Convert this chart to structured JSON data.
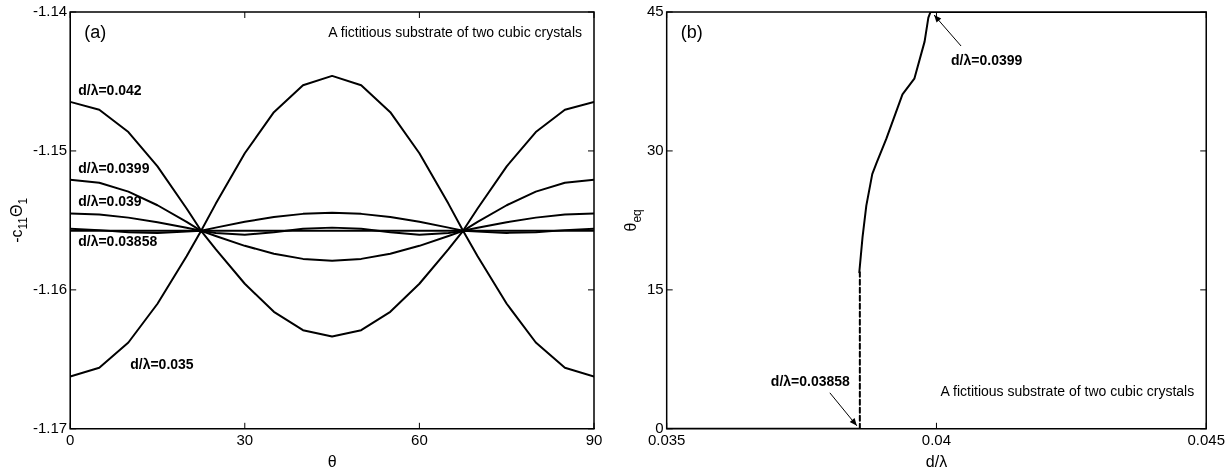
{
  "chart_data": [
    {
      "type": "line",
      "title": "(a)",
      "xlabel": "θ",
      "ylabel": "-c$_{11}$Θ$_{1}$",
      "annotations": [
        "A fictitious substrate of two cubic crystals"
      ],
      "x": [
        0,
        5,
        10,
        15,
        20,
        22.5,
        25,
        30,
        35,
        40,
        45,
        50,
        55,
        60,
        65,
        67.5,
        70,
        75,
        80,
        85,
        90
      ],
      "series": [
        {
          "name": "d/λ=0.042",
          "color": "#000000",
          "values": [
            -1.14647,
            -1.14703,
            -1.14864,
            -1.15111,
            -1.15414,
            -1.15575,
            -1.15381,
            -1.15017,
            -1.14721,
            -1.14527,
            -1.1446,
            -1.14527,
            -1.14721,
            -1.15017,
            -1.15381,
            -1.15575,
            -1.15414,
            -1.15111,
            -1.14864,
            -1.14703,
            -1.14647
          ]
        },
        {
          "name": "d/λ=0.0399",
          "color": "#000000",
          "values": [
            -1.15207,
            -1.15229,
            -1.15293,
            -1.15391,
            -1.15511,
            -1.15575,
            -1.15612,
            -1.15683,
            -1.1574,
            -1.15777,
            -1.1579,
            -1.15777,
            -1.1574,
            -1.15683,
            -1.15612,
            -1.15575,
            -1.15511,
            -1.15391,
            -1.15293,
            -1.15229,
            -1.15207
          ]
        },
        {
          "name": "d/λ=0.039",
          "color": "#000000",
          "values": [
            -1.15451,
            -1.15458,
            -1.1548,
            -1.15513,
            -1.15553,
            -1.15575,
            -1.15552,
            -1.1551,
            -1.15475,
            -1.15453,
            -1.15445,
            -1.15453,
            -1.15475,
            -1.1551,
            -1.15552,
            -1.15575,
            -1.15553,
            -1.15513,
            -1.1548,
            -1.15458,
            -1.15451
          ]
        },
        {
          "name": "d/λ=0.03858",
          "color": "#000000",
          "values": [
            -1.15575,
            -1.15575,
            -1.15575,
            -1.15575,
            -1.15575,
            -1.15575,
            -1.15575,
            -1.15575,
            -1.15575,
            -1.15575,
            -1.15575,
            -1.15575,
            -1.15575,
            -1.15575,
            -1.15575,
            -1.15575,
            -1.15575,
            -1.15575,
            -1.15575,
            -1.15575,
            -1.15575
          ]
        },
        {
          "color": "#000000",
          "values": [
            -1.1556,
            -1.1557,
            -1.15585,
            -1.1559,
            -1.1558,
            -1.15575,
            -1.1559,
            -1.15603,
            -1.15585,
            -1.1556,
            -1.15552,
            -1.1556,
            -1.15585,
            -1.15603,
            -1.1559,
            -1.15575,
            -1.1558,
            -1.1559,
            -1.15585,
            -1.1557,
            -1.1556
          ]
        },
        {
          "name": "d/λ=0.035",
          "color": "#000000",
          "values": [
            -1.16624,
            -1.16561,
            -1.16379,
            -1.161,
            -1.15758,
            -1.15575,
            -1.15707,
            -1.15956,
            -1.16158,
            -1.1629,
            -1.16336,
            -1.1629,
            -1.16158,
            -1.15956,
            -1.15707,
            -1.15575,
            -1.15758,
            -1.161,
            -1.16379,
            -1.16561,
            -1.16624
          ]
        }
      ],
      "xlim": [
        0,
        90
      ],
      "xticks": [
        0,
        30,
        60,
        90
      ],
      "ylim": [
        -1.17,
        -1.14
      ],
      "yticks": [
        -1.17,
        -1.16,
        -1.15,
        -1.14
      ],
      "grid": false,
      "legend": "left",
      "marker": "none",
      "line_style": "solid"
    },
    {
      "type": "line",
      "title": "(b)",
      "xlabel": "d/λ",
      "ylabel": "θ$_{eq}$",
      "annotations": [
        "A fictitious substrate of two cubic crystals",
        {
          "text": "d/λ=0.0399",
          "x": 0.0399,
          "y": 45
        },
        {
          "text": "d/λ=0.03858",
          "x": 0.03858,
          "y": 0
        }
      ],
      "series": [
        {
          "color": "#000000",
          "x": [
            0.035,
            0.03858
          ],
          "values": [
            0,
            0
          ],
          "line_style": "solid"
        },
        {
          "color": "#000000",
          "x": [
            0.03858,
            0.03858
          ],
          "values": [
            0,
            16.9
          ],
          "line_style": "dashed"
        },
        {
          "color": "#000000",
          "x": [
            0.03857,
            0.03863,
            0.0387,
            0.03881,
            0.03889,
            0.03907,
            0.03937,
            0.03959,
            0.03978,
            0.03985,
            0.03989,
            0.045
          ],
          "values": [
            16.9,
            20.7,
            24.1,
            27.5,
            28.7,
            31.3,
            36.1,
            37.8,
            41.8,
            44.4,
            45,
            45
          ],
          "line_style": "solid"
        }
      ],
      "xlim": [
        0.035,
        0.045
      ],
      "xticks": [
        0.035,
        0.04,
        0.045
      ],
      "ylim": [
        0,
        45
      ],
      "yticks": [
        0,
        15,
        30,
        45
      ],
      "grid": false,
      "legend": false,
      "marker": "none"
    }
  ]
}
